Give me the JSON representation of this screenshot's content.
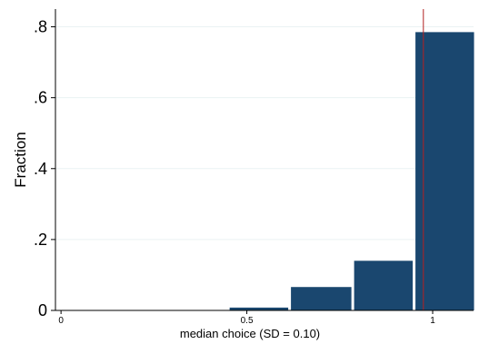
{
  "chart_data": {
    "type": "bar",
    "xlabel": "median choice  (SD = 0.10)",
    "ylabel": "Fraction",
    "x_ticks": [
      {
        "value": 0,
        "label": "0"
      },
      {
        "value": 0.5,
        "label": "0.5"
      },
      {
        "value": 1,
        "label": "1"
      }
    ],
    "y_ticks": [
      {
        "value": 0,
        "label": "0"
      },
      {
        "value": 0.2,
        "label": ".2"
      },
      {
        "value": 0.4,
        "label": ".4"
      },
      {
        "value": 0.6,
        "label": ".6"
      },
      {
        "value": 0.8,
        "label": ".8"
      }
    ],
    "xlim": [
      -0.015,
      1.11
    ],
    "ylim": [
      0,
      0.85
    ],
    "bars": [
      {
        "x_start": 0.45,
        "x_end": 0.615,
        "value": 0.008
      },
      {
        "x_start": 0.615,
        "x_end": 0.785,
        "value": 0.066
      },
      {
        "x_start": 0.785,
        "x_end": 0.95,
        "value": 0.14
      },
      {
        "x_start": 0.95,
        "x_end": 1.115,
        "value": 0.785
      }
    ],
    "reference_line": {
      "x": 0.975,
      "color": "#b22222"
    },
    "bar_color": "#1a476f",
    "grid": true,
    "legend": "none"
  }
}
